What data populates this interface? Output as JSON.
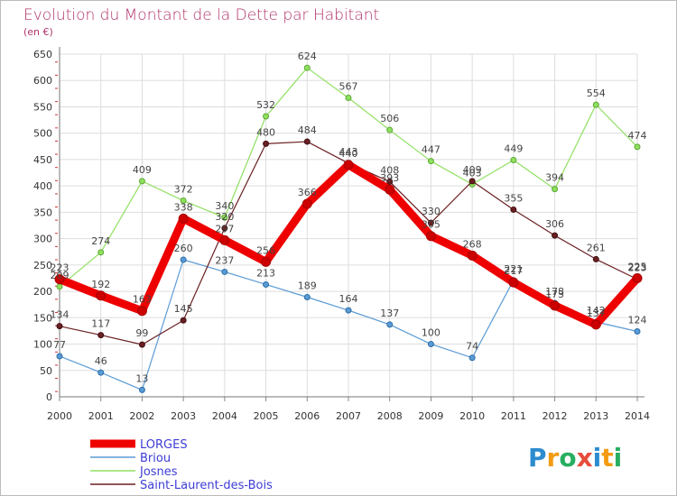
{
  "chart_data": {
    "type": "line",
    "title": "Evolution du Montant de la Dette par Habitant",
    "subtitle": "(en €)",
    "x": [
      "2000",
      "2001",
      "2002",
      "2003",
      "2004",
      "2005",
      "2006",
      "2007",
      "2008",
      "2009",
      "2010",
      "2011",
      "2012",
      "2013",
      "2014"
    ],
    "ylim": [
      0,
      650
    ],
    "yticks": [
      0,
      50,
      100,
      150,
      200,
      250,
      300,
      350,
      400,
      450,
      500,
      550,
      600,
      650
    ],
    "grid": true,
    "legend_position": "bottom-left",
    "series": [
      {
        "name": "LORGES",
        "color": "#ee0000",
        "values": [
          223,
          192,
          163,
          338,
          297,
          256,
          366,
          440,
          393,
          305,
          268,
          217,
          173,
          137,
          225
        ]
      },
      {
        "name": "Briou",
        "color": "#5b9bd5",
        "values": [
          77,
          46,
          13,
          260,
          237,
          213,
          189,
          164,
          137,
          100,
          74,
          221,
          178,
          142,
          124
        ]
      },
      {
        "name": "Josnes",
        "color": "#90e060",
        "values": [
          209,
          274,
          409,
          372,
          340,
          532,
          624,
          567,
          506,
          447,
          403,
          449,
          394,
          554,
          474
        ]
      },
      {
        "name": "Saint-Laurent-des-Bois",
        "color": "#6b1f22",
        "values": [
          134,
          117,
          99,
          145,
          320,
          480,
          484,
          443,
          408,
          330,
          409,
          355,
          306,
          261,
          223
        ]
      }
    ]
  },
  "logo": {
    "text": "Proxiti",
    "letters": [
      "P",
      "r",
      "o",
      "x",
      "i",
      "t",
      "i"
    ],
    "colors": [
      "#2d8ccf",
      "#f39c12",
      "#27ae60",
      "#e74c3c",
      "#2d8ccf",
      "#f39c12",
      "#27ae60"
    ]
  }
}
